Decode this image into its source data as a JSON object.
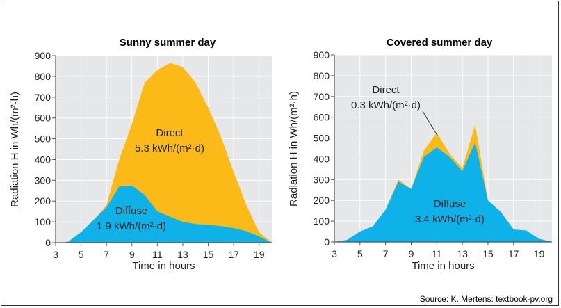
{
  "source": "Source: K. Mertens: textbook-pv.org",
  "colors": {
    "direct": "#FBBA18",
    "diffuse": "#0EB2E8",
    "grid": "#ffffff",
    "plot_bg": "#E6E7E8"
  },
  "chart_data": [
    {
      "type": "area",
      "title": "Sunny summer day",
      "xlabel": "Time in hours",
      "ylabel": "Radiation H in Wh/(m²·h)",
      "xlim": [
        3,
        20
      ],
      "ylim": [
        0,
        900
      ],
      "xticks": [
        3,
        5,
        7,
        9,
        11,
        13,
        15,
        17,
        19
      ],
      "yticks": [
        0,
        100,
        200,
        300,
        400,
        500,
        600,
        700,
        800,
        900
      ],
      "grid": true,
      "x": [
        3.5,
        4,
        5,
        6,
        7,
        8,
        9,
        10,
        11,
        12,
        13,
        14,
        15,
        16,
        17,
        18,
        19,
        20
      ],
      "series": [
        {
          "name": "Diffuse",
          "values": [
            0,
            5,
            50,
            110,
            170,
            270,
            275,
            230,
            150,
            125,
            100,
            90,
            85,
            80,
            70,
            55,
            30,
            0
          ]
        },
        {
          "name": "Direct",
          "values": [
            0,
            5,
            50,
            110,
            180,
            400,
            570,
            770,
            830,
            865,
            845,
            770,
            650,
            510,
            340,
            180,
            50,
            0
          ]
        }
      ],
      "annotations": [
        {
          "label": "Direct",
          "value": "5.3 kWh/(m²·d)"
        },
        {
          "label": "Diffuse",
          "value": "1.9 kWh/(m²·d)"
        }
      ]
    },
    {
      "type": "area",
      "title": "Covered summer day",
      "xlabel": "Time in hours",
      "ylabel": "Radiation H in Wh/(m²·h)",
      "xlim": [
        3,
        20
      ],
      "ylim": [
        0,
        900
      ],
      "xticks": [
        3,
        5,
        7,
        9,
        11,
        13,
        15,
        17,
        19
      ],
      "yticks": [
        0,
        100,
        200,
        300,
        400,
        500,
        600,
        700,
        800,
        900
      ],
      "grid": true,
      "x": [
        3,
        4,
        5,
        6,
        7,
        8,
        9,
        10,
        11,
        12,
        13,
        14,
        15,
        16,
        17,
        18,
        19,
        20
      ],
      "series": [
        {
          "name": "Diffuse",
          "values": [
            0,
            10,
            50,
            75,
            155,
            290,
            255,
            410,
            455,
            410,
            340,
            480,
            200,
            145,
            60,
            55,
            15,
            0
          ]
        },
        {
          "name": "Direct",
          "values": [
            0,
            10,
            50,
            75,
            155,
            300,
            255,
            440,
            525,
            425,
            355,
            565,
            200,
            145,
            60,
            55,
            15,
            0
          ]
        }
      ],
      "annotations": [
        {
          "label": "Direct",
          "value": "0.3 kWh/(m²·d)"
        },
        {
          "label": "Diffuse",
          "value": "3.4 kWh/(m²·d)"
        }
      ]
    }
  ]
}
